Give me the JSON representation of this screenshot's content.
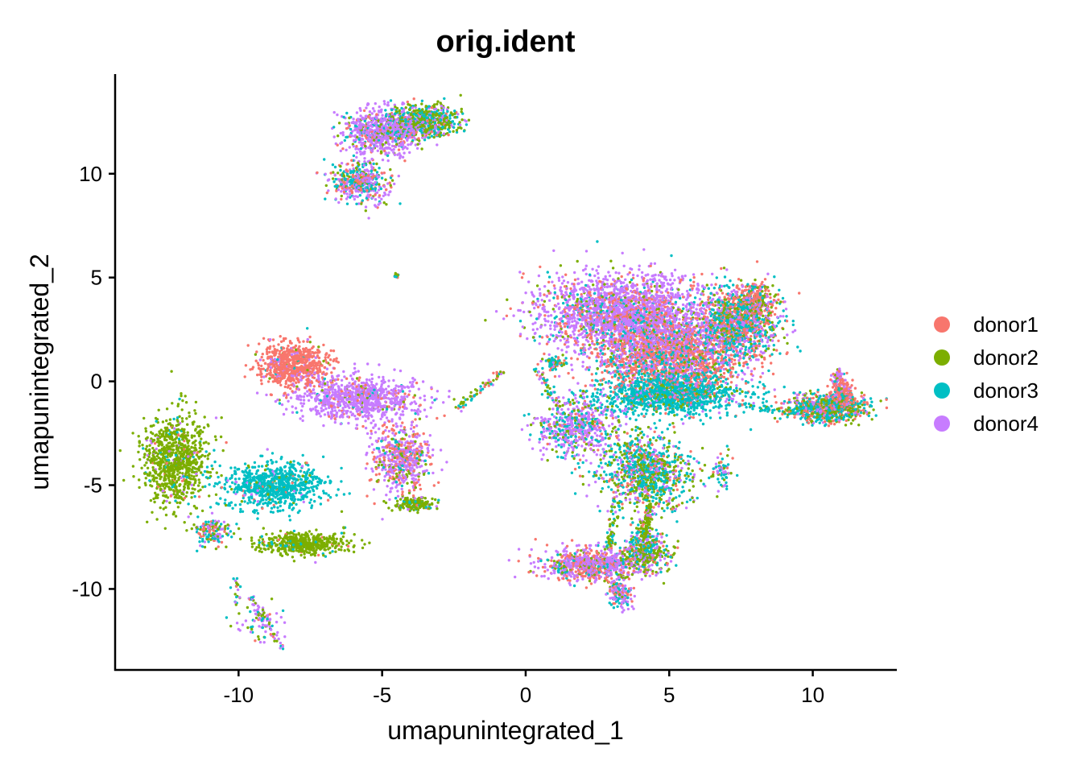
{
  "chart_data": {
    "type": "scatter",
    "title": "orig.ident",
    "xlabel": "umapunintegrated_1",
    "ylabel": "umapunintegrated_2",
    "xlim": [
      -14.3,
      12.9
    ],
    "ylim": [
      -13.9,
      14.8
    ],
    "xticks": [
      -10,
      -5,
      0,
      5,
      10
    ],
    "yticks": [
      -10,
      -5,
      0,
      5,
      10
    ],
    "xtick_labels": [
      "-10",
      "-5",
      "0",
      "5",
      "10"
    ],
    "ytick_labels": [
      "-10",
      "-5",
      "0",
      "5",
      "10"
    ],
    "grid": false,
    "legend_position": "right",
    "series": [
      {
        "name": "donor1",
        "color": "#F8766D"
      },
      {
        "name": "donor2",
        "color": "#7CAE00"
      },
      {
        "name": "donor3",
        "color": "#00BFC4"
      },
      {
        "name": "donor4",
        "color": "#C77CFF"
      }
    ],
    "clusters": [
      {
        "cx": -12.2,
        "cy": -3.8,
        "rx": 1.0,
        "ry": 2.0,
        "n": 900,
        "mix": [
          0.03,
          0.9,
          0.05,
          0.02
        ]
      },
      {
        "cx": -8.7,
        "cy": -5.0,
        "rx": 1.6,
        "ry": 1.0,
        "n": 800,
        "mix": [
          0.03,
          0.05,
          0.9,
          0.02
        ]
      },
      {
        "cx": -7.8,
        "cy": -7.8,
        "rx": 1.4,
        "ry": 0.5,
        "n": 500,
        "mix": [
          0.02,
          0.88,
          0.08,
          0.02
        ]
      },
      {
        "cx": -10.9,
        "cy": -7.2,
        "rx": 0.6,
        "ry": 0.6,
        "n": 150,
        "mix": [
          0.2,
          0.3,
          0.25,
          0.25
        ]
      },
      {
        "cx": -9.4,
        "cy": -11.8,
        "rx": 0.8,
        "ry": 0.8,
        "n": 60,
        "mix": [
          0.1,
          0.2,
          0.2,
          0.5
        ]
      },
      {
        "cx": -8.1,
        "cy": 0.8,
        "rx": 1.1,
        "ry": 0.9,
        "n": 700,
        "mix": [
          0.88,
          0.02,
          0.02,
          0.08
        ]
      },
      {
        "cx": -5.8,
        "cy": -0.8,
        "rx": 2.0,
        "ry": 0.9,
        "n": 900,
        "mix": [
          0.12,
          0.03,
          0.03,
          0.82
        ]
      },
      {
        "cx": -4.3,
        "cy": -3.7,
        "rx": 0.9,
        "ry": 1.5,
        "n": 600,
        "mix": [
          0.3,
          0.12,
          0.08,
          0.5
        ]
      },
      {
        "cx": -3.9,
        "cy": -5.9,
        "rx": 0.6,
        "ry": 0.3,
        "n": 150,
        "mix": [
          0.05,
          0.8,
          0.1,
          0.05
        ]
      },
      {
        "cx": -5.0,
        "cy": 12.0,
        "rx": 1.2,
        "ry": 1.0,
        "n": 800,
        "mix": [
          0.08,
          0.12,
          0.1,
          0.7
        ]
      },
      {
        "cx": -3.5,
        "cy": 12.5,
        "rx": 1.1,
        "ry": 0.7,
        "n": 600,
        "mix": [
          0.05,
          0.45,
          0.3,
          0.2
        ]
      },
      {
        "cx": -5.8,
        "cy": 9.6,
        "rx": 0.9,
        "ry": 0.9,
        "n": 450,
        "mix": [
          0.2,
          0.15,
          0.25,
          0.4
        ]
      },
      {
        "cx": -4.5,
        "cy": 5.1,
        "rx": 0.1,
        "ry": 0.1,
        "n": 15,
        "mix": [
          0.2,
          0.2,
          0.3,
          0.3
        ]
      },
      {
        "cx": 3.5,
        "cy": 3.3,
        "rx": 2.7,
        "ry": 1.6,
        "n": 2400,
        "mix": [
          0.18,
          0.06,
          0.06,
          0.7
        ]
      },
      {
        "cx": 5.0,
        "cy": 1.3,
        "rx": 2.5,
        "ry": 1.5,
        "n": 2000,
        "mix": [
          0.42,
          0.08,
          0.18,
          0.32
        ]
      },
      {
        "cx": 5.0,
        "cy": -0.6,
        "rx": 2.2,
        "ry": 0.9,
        "n": 1300,
        "mix": [
          0.05,
          0.1,
          0.78,
          0.07
        ]
      },
      {
        "cx": 7.4,
        "cy": 2.8,
        "rx": 1.2,
        "ry": 1.4,
        "n": 1000,
        "mix": [
          0.22,
          0.22,
          0.36,
          0.2
        ]
      },
      {
        "cx": 7.9,
        "cy": 3.8,
        "rx": 0.7,
        "ry": 0.8,
        "n": 300,
        "mix": [
          0.55,
          0.25,
          0.1,
          0.1
        ]
      },
      {
        "cx": 1.8,
        "cy": -2.2,
        "rx": 1.3,
        "ry": 1.3,
        "n": 600,
        "mix": [
          0.1,
          0.15,
          0.2,
          0.55
        ]
      },
      {
        "cx": 4.2,
        "cy": -4.4,
        "rx": 1.4,
        "ry": 1.7,
        "n": 1000,
        "mix": [
          0.1,
          0.3,
          0.4,
          0.2
        ]
      },
      {
        "cx": 2.3,
        "cy": -8.8,
        "rx": 1.5,
        "ry": 0.7,
        "n": 800,
        "mix": [
          0.32,
          0.1,
          0.08,
          0.5
        ]
      },
      {
        "cx": 4.2,
        "cy": -8.2,
        "rx": 0.8,
        "ry": 0.9,
        "n": 400,
        "mix": [
          0.1,
          0.45,
          0.25,
          0.2
        ]
      },
      {
        "cx": 3.3,
        "cy": -10.2,
        "rx": 0.4,
        "ry": 0.6,
        "n": 150,
        "mix": [
          0.2,
          0.1,
          0.25,
          0.45
        ]
      },
      {
        "cx": 10.5,
        "cy": -1.3,
        "rx": 1.2,
        "ry": 0.6,
        "n": 800,
        "mix": [
          0.25,
          0.25,
          0.38,
          0.12
        ]
      },
      {
        "cx": 11.0,
        "cy": -0.7,
        "rx": 0.4,
        "ry": 0.6,
        "n": 250,
        "mix": [
          0.7,
          0.1,
          0.05,
          0.15
        ]
      },
      {
        "cx": 10.9,
        "cy": 0.1,
        "rx": 0.2,
        "ry": 0.6,
        "n": 60,
        "mix": [
          0.2,
          0.1,
          0.2,
          0.5
        ]
      },
      {
        "cx": 1.0,
        "cy": 0.9,
        "rx": 0.4,
        "ry": 0.3,
        "n": 70,
        "mix": [
          0.2,
          0.3,
          0.4,
          0.1
        ]
      },
      {
        "cx": 6.8,
        "cy": -4.3,
        "rx": 0.3,
        "ry": 0.9,
        "n": 60,
        "mix": [
          0.2,
          0.2,
          0.3,
          0.3
        ]
      }
    ],
    "streams": [
      {
        "x0": -2.4,
        "y0": -1.3,
        "x1": -0.8,
        "y1": 0.5,
        "n": 60,
        "mix": [
          0.2,
          0.4,
          0.3,
          0.1
        ]
      },
      {
        "x0": -9.6,
        "y0": -10.4,
        "x1": -8.5,
        "y1": -12.8,
        "n": 60,
        "mix": [
          0.1,
          0.2,
          0.2,
          0.5
        ]
      },
      {
        "x0": -10.1,
        "y0": -9.3,
        "x1": -10.1,
        "y1": -10.8,
        "n": 20,
        "mix": [
          0.1,
          0.2,
          0.4,
          0.3
        ]
      },
      {
        "x0": 4.3,
        "y0": -6.0,
        "x1": 4.1,
        "y1": -7.6,
        "n": 120,
        "mix": [
          0.05,
          0.75,
          0.1,
          0.1
        ]
      },
      {
        "x0": 3.2,
        "y0": -6.0,
        "x1": 2.9,
        "y1": -8.0,
        "n": 60,
        "mix": [
          0.1,
          0.5,
          0.3,
          0.1
        ]
      },
      {
        "x0": 7.4,
        "y0": -1.1,
        "x1": 9.5,
        "y1": -1.5,
        "n": 60,
        "mix": [
          0.1,
          0.2,
          0.6,
          0.1
        ]
      },
      {
        "x0": 0.4,
        "y0": 0.6,
        "x1": 1.2,
        "y1": -1.5,
        "n": 50,
        "mix": [
          0.2,
          0.2,
          0.3,
          0.3
        ]
      }
    ]
  }
}
